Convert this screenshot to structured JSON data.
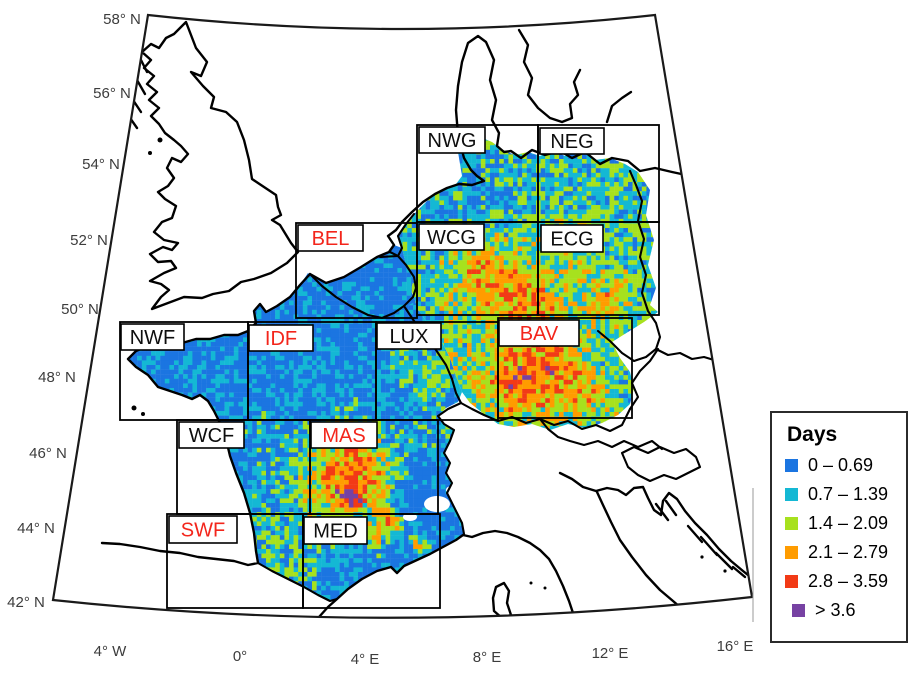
{
  "legend": {
    "title": "Days",
    "entries": [
      {
        "label": "0 – 0.69",
        "color": "#1B75E1"
      },
      {
        "label": "0.7 – 1.39",
        "color": "#14B8D4"
      },
      {
        "label": "1.4 – 2.09",
        "color": "#A7E11E"
      },
      {
        "label": "2.1 – 2.79",
        "color": "#FF9C00"
      },
      {
        "label": "2.8 – 3.59",
        "color": "#F23A16"
      },
      {
        "label": "> 3.6",
        "color": "#7742A3"
      }
    ]
  },
  "axes": {
    "latitude_labels": [
      "58° N",
      "56° N",
      "54° N",
      "52° N",
      "50° N",
      "48° N",
      "46° N",
      "44° N",
      "42° N"
    ],
    "longitude_labels": [
      "4° W",
      "0°",
      "4° E",
      "8° E",
      "12° E",
      "16° E"
    ]
  },
  "regions": [
    {
      "code": "NWG",
      "label_color": "black"
    },
    {
      "code": "NEG",
      "label_color": "black"
    },
    {
      "code": "BEL",
      "label_color": "red"
    },
    {
      "code": "WCG",
      "label_color": "black"
    },
    {
      "code": "ECG",
      "label_color": "black"
    },
    {
      "code": "NWF",
      "label_color": "black"
    },
    {
      "code": "IDF",
      "label_color": "red"
    },
    {
      "code": "LUX",
      "label_color": "black"
    },
    {
      "code": "BAV",
      "label_color": "red"
    },
    {
      "code": "WCF",
      "label_color": "black"
    },
    {
      "code": "MAS",
      "label_color": "red"
    },
    {
      "code": "SWF",
      "label_color": "red"
    },
    {
      "code": "MED",
      "label_color": "black"
    }
  ],
  "colors": {
    "red_label": "#F3251B",
    "black_label": "#0d0d0d",
    "coastline": "#000000",
    "tick_text": "#3c3c3c"
  }
}
